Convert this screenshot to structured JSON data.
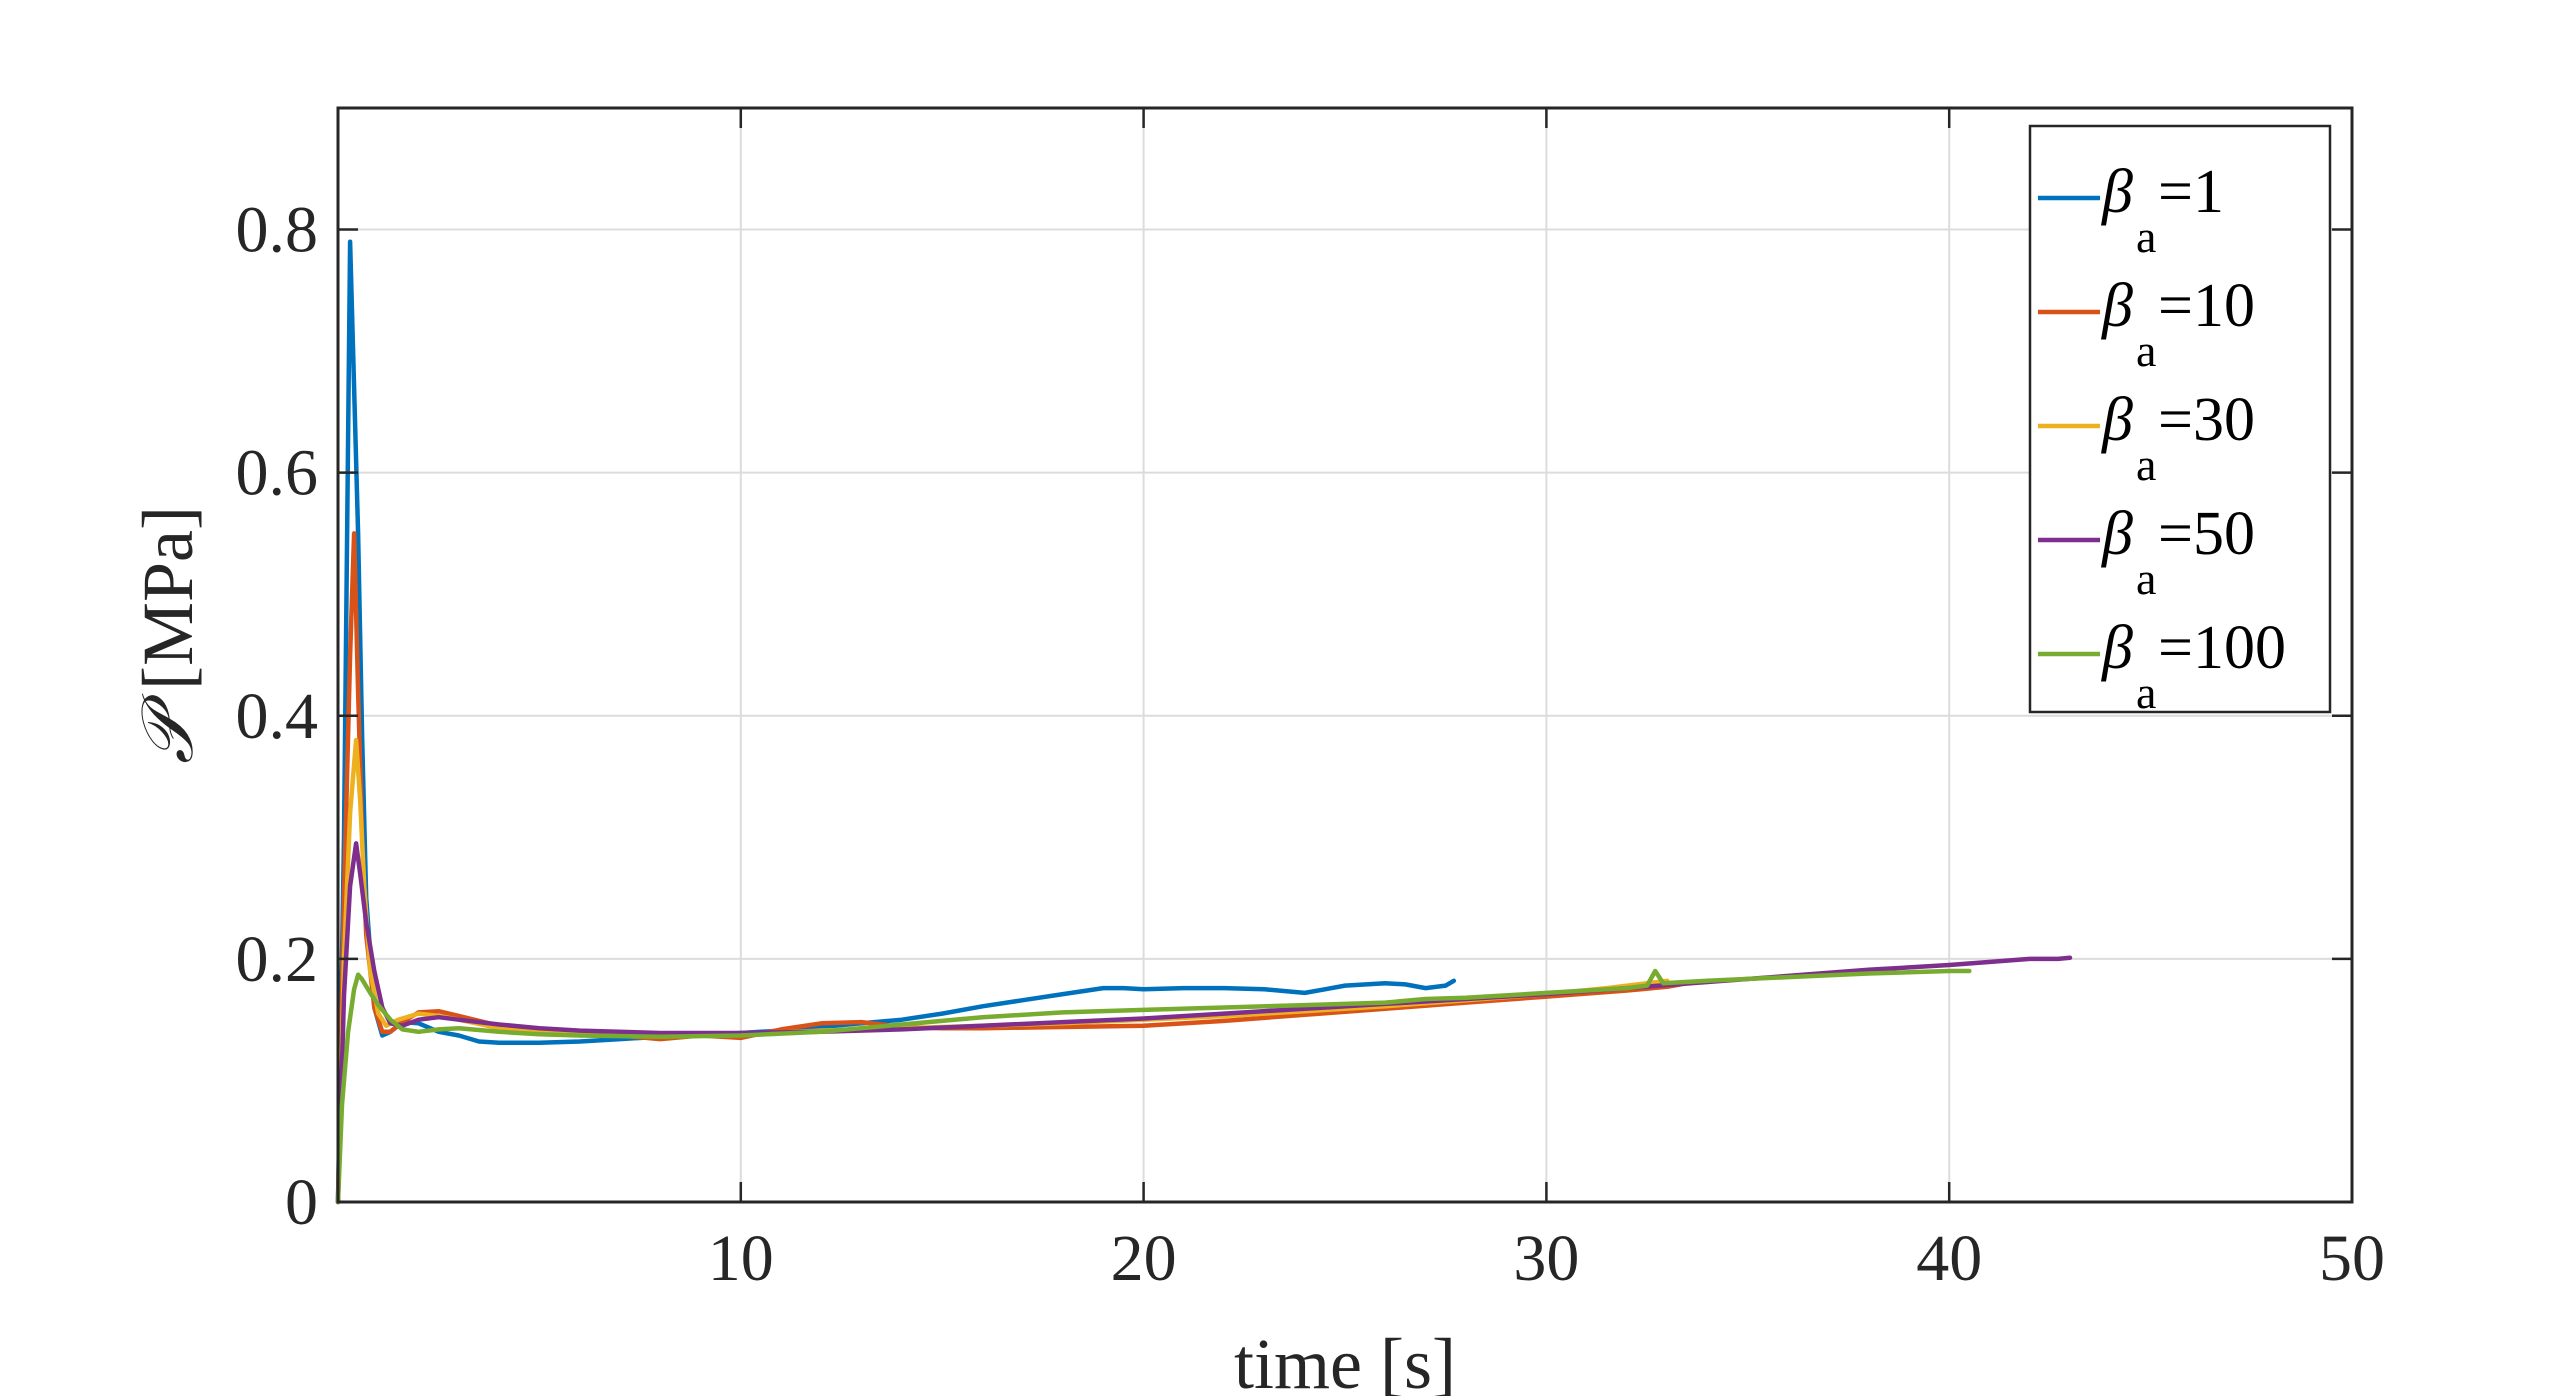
{
  "chart_data": {
    "type": "line",
    "xlabel": "time [s]",
    "ylabel_symbol": "𝒫",
    "ylabel_unit": "[MPa]",
    "xlim": [
      0,
      50
    ],
    "ylim": [
      0,
      0.9
    ],
    "xticks": [
      10,
      20,
      30,
      40,
      50
    ],
    "xtick_labels": [
      "10",
      "20",
      "30",
      "40",
      "50"
    ],
    "yticks": [
      0,
      0.2,
      0.4,
      0.6,
      0.8
    ],
    "ytick_labels": [
      "0",
      "0.2",
      "0.4",
      "0.6",
      "0.8"
    ],
    "grid": true,
    "legend_position": "top-right",
    "series": [
      {
        "name": "β_a=1",
        "label_main": "β",
        "label_sub": "a",
        "label_value": "=1",
        "color": "#0072BD",
        "x": [
          0,
          0.15,
          0.3,
          0.5,
          0.6,
          0.7,
          0.9,
          1.1,
          1.3,
          1.6,
          2.0,
          2.5,
          3.0,
          3.5,
          4.0,
          5.0,
          6.0,
          7.0,
          8.0,
          9.0,
          10.0,
          11.0,
          12.0,
          13.0,
          14.0,
          15.0,
          16.0,
          17.0,
          18.0,
          19.0,
          19.5,
          20.0,
          21.0,
          22.0,
          23.0,
          24.0,
          24.5,
          25.0,
          26.0,
          26.5,
          27.0,
          27.5,
          27.7
        ],
        "y": [
          0,
          0.3,
          0.79,
          0.55,
          0.38,
          0.25,
          0.16,
          0.137,
          0.14,
          0.148,
          0.147,
          0.14,
          0.137,
          0.132,
          0.131,
          0.131,
          0.132,
          0.134,
          0.136,
          0.137,
          0.139,
          0.141,
          0.144,
          0.147,
          0.15,
          0.155,
          0.161,
          0.166,
          0.171,
          0.176,
          0.176,
          0.175,
          0.176,
          0.176,
          0.175,
          0.172,
          0.175,
          0.178,
          0.18,
          0.179,
          0.176,
          0.178,
          0.182
        ]
      },
      {
        "name": "β_a=10",
        "label_main": "β",
        "label_sub": "a",
        "label_value": "=10",
        "color": "#D95319",
        "x": [
          0,
          0.15,
          0.3,
          0.4,
          0.5,
          0.6,
          0.7,
          0.9,
          1.1,
          1.3,
          1.6,
          2.0,
          2.5,
          3.0,
          4.0,
          5.0,
          6.0,
          7.0,
          8.0,
          9.0,
          10.0,
          11.0,
          12.0,
          13.0,
          14.0,
          15.0,
          16.0,
          18.0,
          20.0,
          22.0,
          24.0,
          26.0,
          28.0,
          30.0,
          32.0,
          33.0,
          33.5
        ],
        "y": [
          0,
          0.25,
          0.45,
          0.55,
          0.42,
          0.3,
          0.22,
          0.16,
          0.14,
          0.14,
          0.148,
          0.156,
          0.157,
          0.153,
          0.145,
          0.141,
          0.139,
          0.137,
          0.134,
          0.137,
          0.135,
          0.142,
          0.147,
          0.148,
          0.144,
          0.143,
          0.143,
          0.144,
          0.145,
          0.149,
          0.154,
          0.159,
          0.164,
          0.169,
          0.174,
          0.177,
          0.18
        ]
      },
      {
        "name": "β_a=30",
        "label_main": "β",
        "label_sub": "a",
        "label_value": "=30",
        "color": "#EDB120",
        "x": [
          0,
          0.15,
          0.3,
          0.45,
          0.55,
          0.65,
          0.8,
          1.0,
          1.2,
          1.5,
          2.0,
          2.5,
          3.0,
          4.0,
          5.0,
          6.0,
          8.0,
          10.0,
          12.0,
          14.0,
          16.0,
          18.0,
          20.0,
          22.0,
          24.0,
          26.0,
          28.0,
          30.0,
          31.5,
          32.5,
          33.0
        ],
        "y": [
          0,
          0.2,
          0.32,
          0.38,
          0.33,
          0.26,
          0.19,
          0.155,
          0.145,
          0.15,
          0.155,
          0.153,
          0.15,
          0.143,
          0.14,
          0.138,
          0.137,
          0.138,
          0.141,
          0.143,
          0.145,
          0.147,
          0.15,
          0.153,
          0.157,
          0.161,
          0.166,
          0.171,
          0.176,
          0.18,
          0.182
        ]
      },
      {
        "name": "β_a=50",
        "label_main": "β",
        "label_sub": "a",
        "label_value": "=50",
        "color": "#7E2F8E",
        "x": [
          0,
          0.15,
          0.3,
          0.45,
          0.55,
          0.7,
          0.9,
          1.1,
          1.3,
          1.6,
          2.0,
          2.5,
          3.0,
          4.0,
          5.0,
          6.0,
          8.0,
          10.0,
          12.0,
          14.0,
          16.0,
          18.0,
          20.0,
          22.0,
          24.0,
          26.0,
          28.0,
          30.0,
          32.0,
          34.0,
          36.0,
          38.0,
          40.0,
          42.0,
          42.7,
          43.0
        ],
        "y": [
          0,
          0.17,
          0.26,
          0.295,
          0.27,
          0.23,
          0.19,
          0.16,
          0.147,
          0.145,
          0.15,
          0.152,
          0.15,
          0.146,
          0.143,
          0.141,
          0.139,
          0.139,
          0.14,
          0.142,
          0.145,
          0.148,
          0.151,
          0.155,
          0.159,
          0.163,
          0.167,
          0.171,
          0.176,
          0.181,
          0.186,
          0.191,
          0.195,
          0.2,
          0.2,
          0.201
        ]
      },
      {
        "name": "β_a=100",
        "label_main": "β",
        "label_sub": "a",
        "label_value": "=100",
        "color": "#77AC30",
        "x": [
          0,
          0.1,
          0.25,
          0.4,
          0.5,
          0.6,
          0.8,
          1.0,
          1.3,
          1.6,
          2.0,
          2.5,
          3.0,
          4.0,
          5.0,
          6.0,
          8.0,
          10.0,
          12.0,
          14.0,
          16.0,
          18.0,
          20.0,
          22.0,
          24.0,
          26.0,
          27.0,
          28.0,
          30.0,
          32.0,
          32.5,
          32.7,
          32.9,
          34.0,
          36.0,
          38.0,
          40.0,
          40.5
        ],
        "y": [
          0,
          0.08,
          0.14,
          0.175,
          0.187,
          0.183,
          0.172,
          0.162,
          0.15,
          0.142,
          0.14,
          0.142,
          0.143,
          0.14,
          0.138,
          0.137,
          0.136,
          0.137,
          0.14,
          0.146,
          0.152,
          0.156,
          0.158,
          0.16,
          0.162,
          0.164,
          0.167,
          0.168,
          0.172,
          0.176,
          0.178,
          0.19,
          0.18,
          0.182,
          0.185,
          0.188,
          0.19,
          0.19
        ]
      }
    ]
  }
}
